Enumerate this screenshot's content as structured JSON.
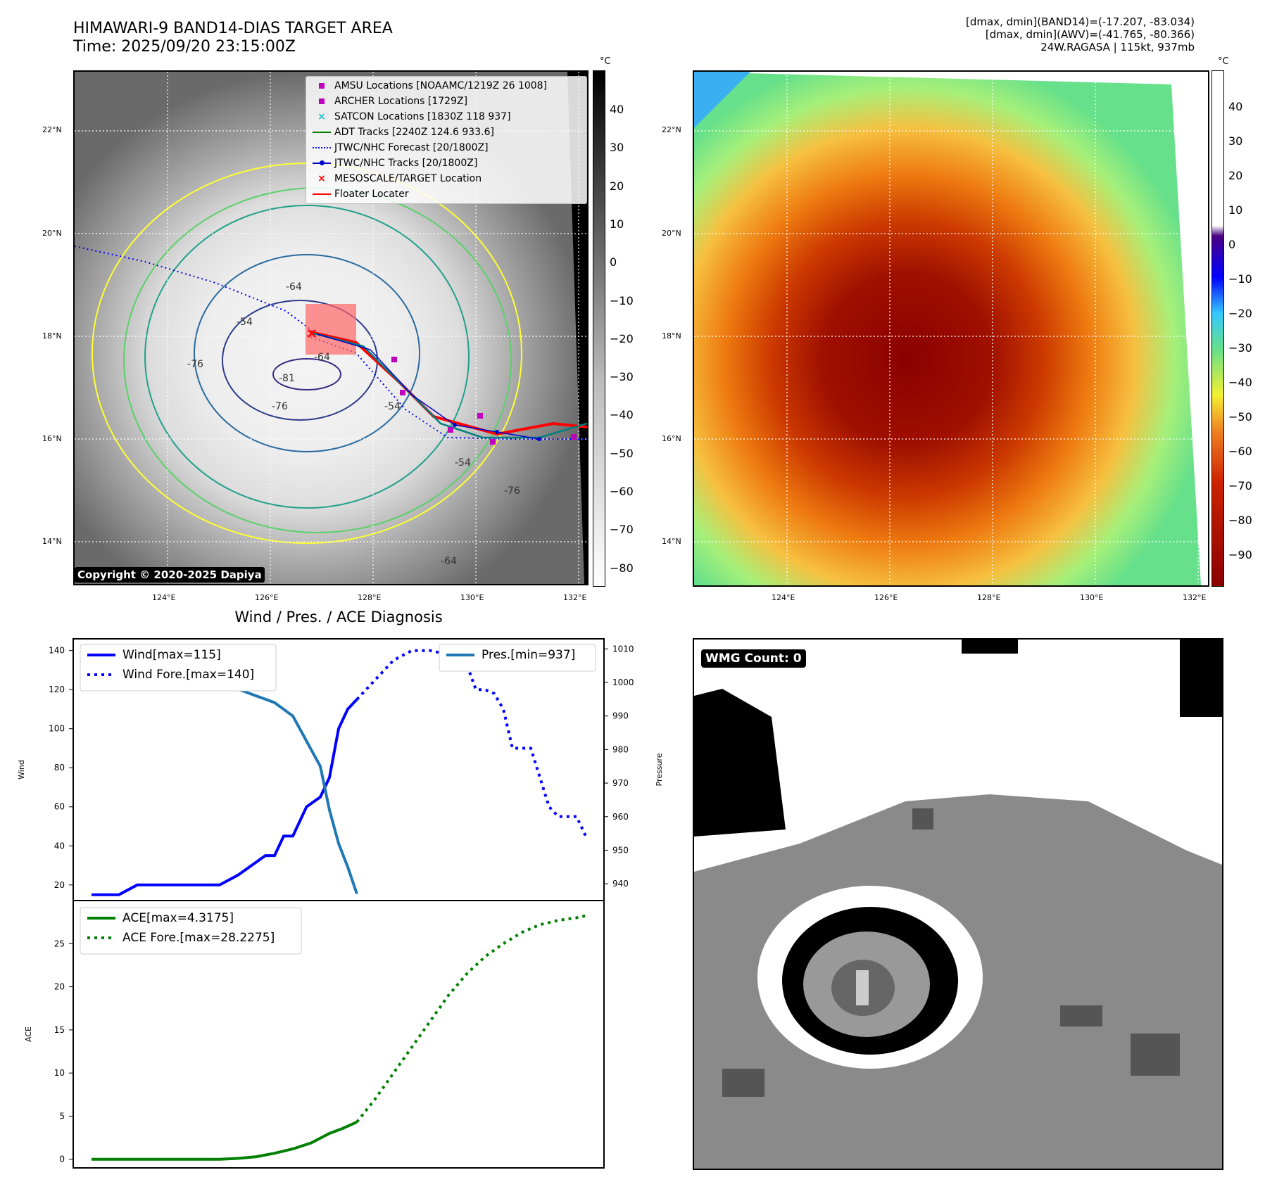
{
  "header": {
    "title_line1": "HIMAWARI-9 BAND14-DIAS TARGET AREA",
    "title_line2": "Time: 2025/09/20 23:15:00Z",
    "info_line1": "[dmax, dmin](BAND14)=(-17.207, -83.034)",
    "info_line2": "[dmax, dmin](AWV)=(-41.765, -80.366)",
    "info_line3": "24W.RAGASA | 115kt, 937mb"
  },
  "map": {
    "lat_ticks": [
      "22°N",
      "20°N",
      "18°N",
      "16°N",
      "14°N"
    ],
    "lon_ticks": [
      "124°E",
      "126°E",
      "128°E",
      "130°E",
      "132°E"
    ],
    "contour_labels": [
      "-54",
      "-64",
      "-76",
      "-81",
      "-76",
      "-54",
      "-64",
      "-76",
      "-54",
      "-64"
    ],
    "copyright": "Copyright © 2020-2025 Dapiya",
    "legend": [
      {
        "label": "AMSU Locations [NOAAMC/1219Z 26 1008]",
        "symbol": "square",
        "color": "#bf00bf"
      },
      {
        "label": "ARCHER Locations [1729Z]",
        "symbol": "square",
        "color": "#bf00bf"
      },
      {
        "label": "SATCON Locations [1830Z 118 937]",
        "symbol": "x",
        "color": "#17becf"
      },
      {
        "label": "ADT Tracks [2240Z 124.6 933.6]",
        "symbol": "line",
        "color": "#008000"
      },
      {
        "label": "JTWC/NHC Forecast [20/1800Z]",
        "symbol": "dotted",
        "color": "#0000ff"
      },
      {
        "label": "JTWC/NHC Tracks [20/1800Z]",
        "symbol": "line-dot",
        "color": "#0000cc"
      },
      {
        "label": "MESOSCALE/TARGET Location",
        "symbol": "x",
        "color": "#ff0000"
      },
      {
        "label": "Floater Locater",
        "symbol": "line",
        "color": "#ff0000"
      }
    ]
  },
  "colorbars": {
    "unit": "°C",
    "left_ticks": [
      "40",
      "30",
      "20",
      "10",
      "0",
      "−10",
      "−20",
      "−30",
      "−40",
      "−50",
      "−60",
      "−70",
      "−80"
    ],
    "right_ticks": [
      "40",
      "30",
      "20",
      "10",
      "0",
      "−10",
      "−20",
      "−30",
      "−40",
      "−50",
      "−60",
      "−70",
      "−80",
      "−90"
    ]
  },
  "diag": {
    "title": "Wind / Pres. / ACE Diagnosis",
    "wmg_label": "WMG Count: 0"
  },
  "chart_data": [
    {
      "type": "line",
      "title": "Wind / Pres. / ACE Diagnosis",
      "ylabel": "Wind",
      "ylim": [
        12,
        146
      ],
      "y2label": "Pressure",
      "y2lim": [
        935,
        1013
      ],
      "xlim": [
        0,
        58
      ],
      "yticks": [
        20,
        40,
        60,
        80,
        100,
        120,
        140
      ],
      "y2ticks": [
        940,
        950,
        960,
        970,
        980,
        990,
        1000,
        1010
      ],
      "series": [
        {
          "name": "Wind[max=115]",
          "axis": "left",
          "style": "solid",
          "color": "#0000ff",
          "x": [
            2,
            5,
            7,
            10,
            13,
            16,
            18,
            19.5,
            21,
            22,
            23,
            24,
            25.5,
            27,
            28,
            29,
            30,
            31
          ],
          "y": [
            15,
            15,
            20,
            20,
            20,
            20,
            25,
            30,
            35,
            35,
            45,
            45,
            60,
            65,
            75,
            100,
            110,
            115
          ]
        },
        {
          "name": "Wind Fore.[max=140]",
          "axis": "left",
          "style": "dotted",
          "color": "#0000ff",
          "x": [
            31,
            33,
            35,
            37,
            39,
            41,
            43,
            44,
            45,
            46,
            47,
            48,
            49,
            50,
            51,
            52,
            53,
            54,
            55,
            56
          ],
          "y": [
            115,
            125,
            135,
            140,
            140,
            138,
            133,
            120,
            120,
            118,
            110,
            90,
            90,
            90,
            75,
            60,
            55,
            55,
            55,
            45
          ]
        },
        {
          "name": "Pres.[min=937]",
          "axis": "right",
          "style": "solid",
          "color": "#1f77b4",
          "x": [
            2,
            3,
            5,
            8,
            10,
            12,
            14,
            16,
            18,
            20,
            22,
            24,
            25,
            26,
            27,
            28,
            29,
            30,
            31
          ],
          "y": [
            1007,
            1005,
            1004,
            1004,
            1004,
            1003,
            1002,
            1000,
            998,
            996,
            994,
            990,
            985,
            980,
            975,
            962,
            952,
            945,
            937
          ]
        }
      ]
    },
    {
      "type": "line",
      "ylabel": "ACE",
      "ylim": [
        -1,
        30
      ],
      "xlim": [
        0,
        58
      ],
      "yticks": [
        0,
        5,
        10,
        15,
        20,
        25
      ],
      "series": [
        {
          "name": "ACE[max=4.3175]",
          "style": "solid",
          "color": "#008000",
          "x": [
            2,
            8,
            14,
            16,
            18,
            20,
            22,
            24,
            26,
            28,
            29.5,
            31
          ],
          "y": [
            0,
            0,
            0,
            0,
            0.1,
            0.3,
            0.7,
            1.2,
            1.9,
            3.0,
            3.6,
            4.3175
          ]
        },
        {
          "name": "ACE Fore.[max=28.2275]",
          "style": "dotted",
          "color": "#008000",
          "x": [
            31,
            33,
            35,
            37,
            39,
            41,
            43,
            45,
            47,
            49,
            51,
            53,
            55,
            56
          ],
          "y": [
            4.3175,
            7,
            10,
            13,
            16,
            19,
            21.5,
            23.5,
            25,
            26.3,
            27.2,
            27.7,
            28.0,
            28.2275
          ]
        }
      ]
    }
  ]
}
